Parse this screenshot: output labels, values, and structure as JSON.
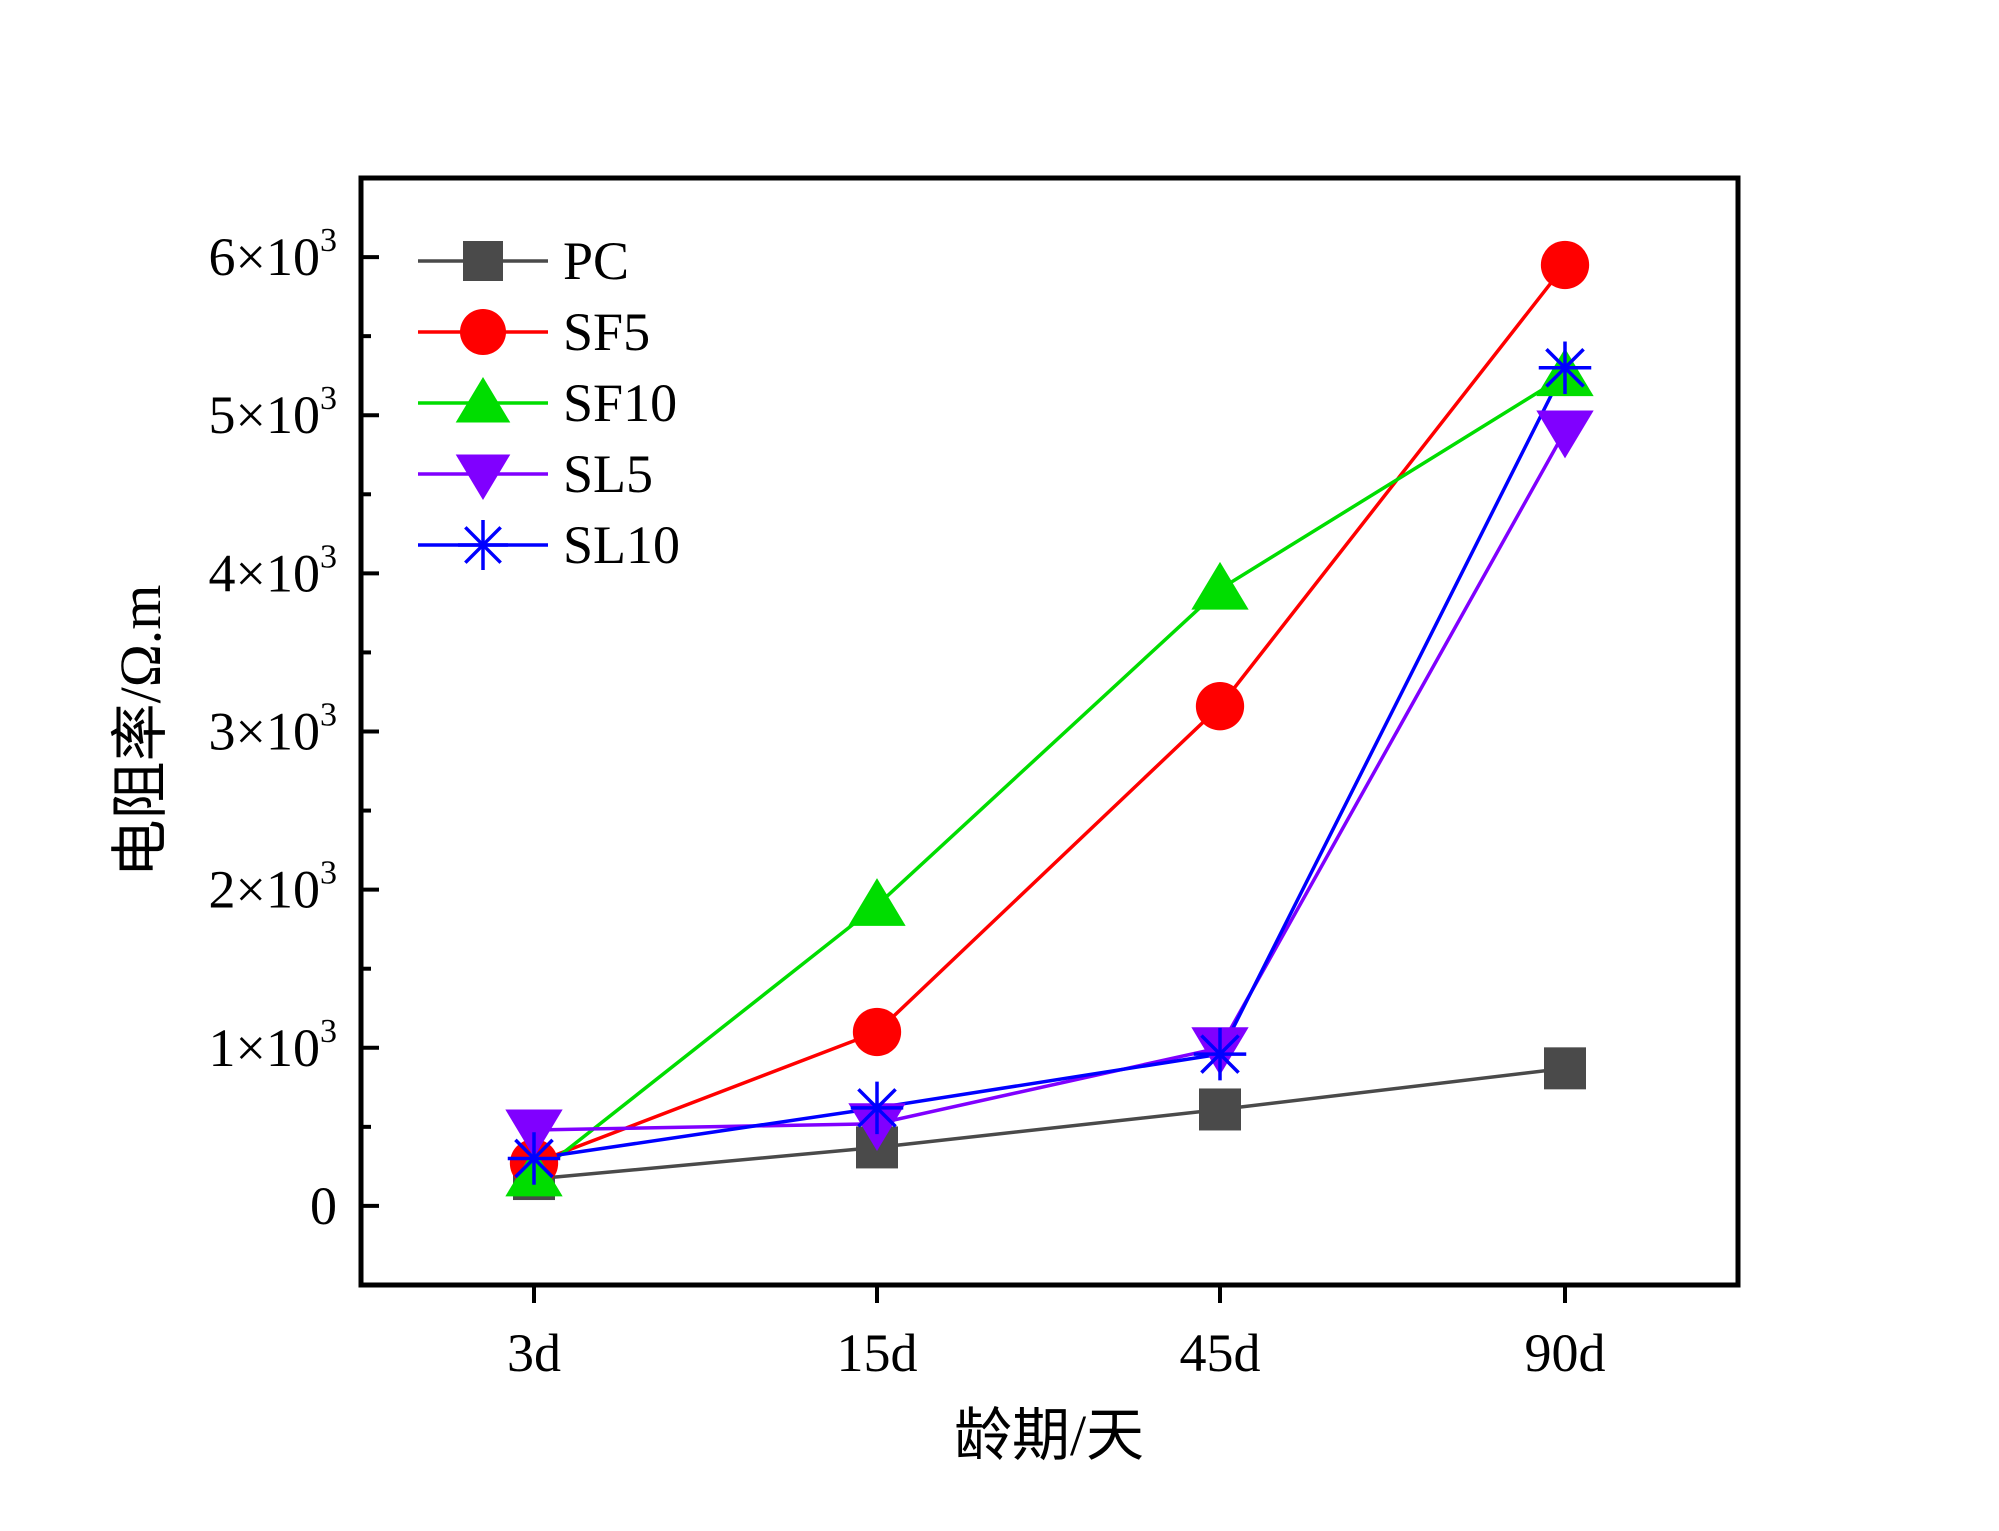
{
  "chart_data": {
    "type": "line",
    "xlabel": "龄期/天",
    "ylabel": "电阻率/Ω.m",
    "categories": [
      "3d",
      "15d",
      "45d",
      "90d"
    ],
    "ylim": [
      -500,
      6500
    ],
    "yticks": [
      {
        "value": 0,
        "label": "0",
        "exp": ""
      },
      {
        "value": 1000,
        "label": "1×10",
        "exp": "3"
      },
      {
        "value": 2000,
        "label": "2×10",
        "exp": "3"
      },
      {
        "value": 3000,
        "label": "3×10",
        "exp": "3"
      },
      {
        "value": 4000,
        "label": "4×10",
        "exp": "3"
      },
      {
        "value": 5000,
        "label": "5×10",
        "exp": "3"
      },
      {
        "value": 6000,
        "label": "6×10",
        "exp": "3"
      }
    ],
    "grid": false,
    "legend_position": "top-left",
    "series": [
      {
        "name": "PC",
        "color": "#4a4a4a",
        "marker": "square",
        "values": [
          170,
          370,
          610,
          870
        ]
      },
      {
        "name": "SF5",
        "color": "#ff0000",
        "marker": "circle",
        "values": [
          270,
          1100,
          3160,
          5950
        ]
      },
      {
        "name": "SF10",
        "color": "#00dd00",
        "marker": "triangle-up",
        "values": [
          190,
          1900,
          3900,
          5250
        ]
      },
      {
        "name": "SL5",
        "color": "#8000ff",
        "marker": "triangle-down",
        "values": [
          480,
          520,
          1000,
          4900
        ]
      },
      {
        "name": "SL10",
        "color": "#0000ff",
        "marker": "asterisk",
        "values": [
          300,
          620,
          960,
          5300
        ]
      }
    ]
  }
}
